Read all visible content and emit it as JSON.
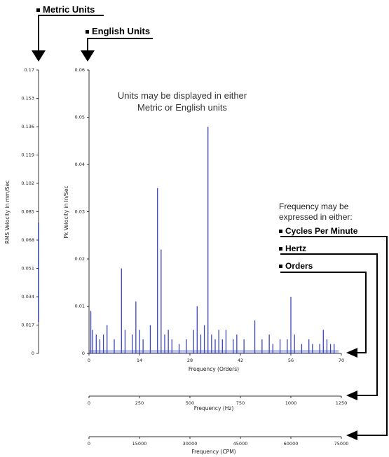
{
  "callouts": {
    "metric": "Metric Units",
    "english": "English Units",
    "cpm": "Cycles Per Minute",
    "hertz": "Hertz",
    "orders": "Orders"
  },
  "notes": {
    "units_line1": "Units may be displayed in either",
    "units_line2": "Metric or English units",
    "freq_line1": "Frequency may be",
    "freq_line2": "expressed in either:"
  },
  "chart_data": {
    "type": "bar",
    "title": "",
    "ylabel": "Pk Velocity in In/Sec",
    "ylabel_metric": "RMS Velocity in mm/Sec",
    "ylim": [
      0,
      0.06
    ],
    "yticks": [
      "0",
      "0.01",
      "0.02",
      "0.03",
      "0.04",
      "0.05",
      "0.06"
    ],
    "ylim_metric": [
      0,
      0.17
    ],
    "yticks_metric": [
      "0",
      "0.017",
      "0.034",
      "0.051",
      "0.068",
      "0.085",
      "0.102",
      "0.119",
      "0.136",
      "0.153",
      "0.17"
    ],
    "axes": [
      {
        "xlabel": "Frequency (Orders)",
        "xlim": [
          0,
          70
        ],
        "ticks": [
          "0",
          "14",
          "28",
          "42",
          "56",
          "70"
        ]
      },
      {
        "xlabel": "Frequency (Hz)",
        "xlim": [
          0,
          1250
        ],
        "ticks": [
          "0",
          "250",
          "500",
          "750",
          "1000",
          "1250"
        ]
      },
      {
        "xlabel": "Frequency (CPM)",
        "xlim": [
          0,
          75000
        ],
        "ticks": [
          "0",
          "15000",
          "30000",
          "45000",
          "60000",
          "75000"
        ]
      }
    ],
    "series": [
      {
        "x": [
          0.5,
          1,
          2,
          3,
          4,
          5,
          7,
          9,
          10,
          12,
          13,
          14,
          15,
          17,
          19,
          20,
          21,
          22,
          23,
          25,
          27,
          29,
          30,
          31,
          32,
          33,
          34,
          35,
          36,
          37,
          38,
          40,
          41,
          43,
          46,
          48,
          50,
          51,
          53,
          55,
          56,
          57,
          59,
          61,
          62,
          64,
          65,
          66,
          67,
          68
        ],
        "values": [
          0.009,
          0.005,
          0.004,
          0.003,
          0.004,
          0.006,
          0.003,
          0.018,
          0.005,
          0.004,
          0.011,
          0.005,
          0.003,
          0.006,
          0.035,
          0.022,
          0.004,
          0.005,
          0.003,
          0.002,
          0.003,
          0.005,
          0.01,
          0.004,
          0.006,
          0.048,
          0.004,
          0.003,
          0.005,
          0.003,
          0.005,
          0.003,
          0.004,
          0.003,
          0.007,
          0.003,
          0.004,
          0.002,
          0.003,
          0.003,
          0.012,
          0.004,
          0.002,
          0.003,
          0.002,
          0.002,
          0.005,
          0.003,
          0.002,
          0.002
        ]
      }
    ]
  }
}
